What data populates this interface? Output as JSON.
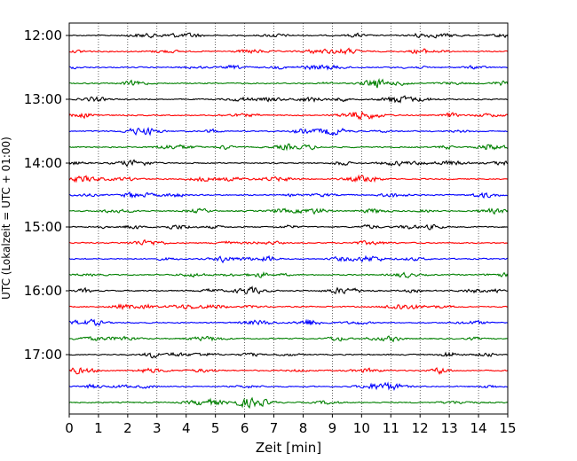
{
  "chart_data": {
    "type": "line",
    "title": "",
    "xlabel": "Zeit  [min]",
    "ylabel": "UTC (Lokalzeit = UTC + 01:00)",
    "x_ticks": [
      "0",
      "1",
      "2",
      "3",
      "4",
      "5",
      "6",
      "7",
      "8",
      "9",
      "10",
      "11",
      "12",
      "13",
      "14",
      "15"
    ],
    "xlim": [
      0,
      15
    ],
    "y_ticks": [
      "12:00",
      "13:00",
      "14:00",
      "15:00",
      "16:00",
      "17:00"
    ],
    "trace_interval_minutes": 15,
    "trace_start": "12:00",
    "trace_count": 24,
    "trace_colors": [
      "#000000",
      "#ff0000",
      "#0000ff",
      "#008000"
    ],
    "grid": "vertical dotted lines at each minute",
    "legend": "none"
  }
}
